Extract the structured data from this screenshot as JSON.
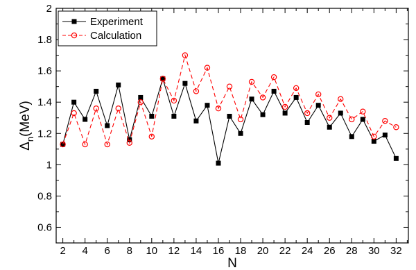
{
  "chart_data": {
    "type": "line",
    "title": "",
    "xlabel": "N",
    "ylabel_main": "Δ",
    "ylabel_sub": "n",
    "ylabel_unit": "(MeV)",
    "xlim": [
      1.4,
      33.1
    ],
    "ylim": [
      0.5,
      2.0
    ],
    "xticks_major": [
      2,
      4,
      6,
      8,
      10,
      12,
      14,
      16,
      18,
      20,
      22,
      24,
      26,
      28,
      30,
      32
    ],
    "xtick_labels": [
      "2",
      "4",
      "6",
      "8",
      "10",
      "12",
      "14",
      "16",
      "18",
      "20",
      "22",
      "24",
      "26",
      "28",
      "30",
      "32"
    ],
    "yticks_major": [
      0.6,
      0.8,
      1.0,
      1.2,
      1.4,
      1.6,
      1.8,
      2.0
    ],
    "ytick_labels": [
      "0.6",
      "0.8",
      "1",
      "1.2",
      "1.4",
      "1.6",
      "1.8",
      "2"
    ],
    "grid": false,
    "legend_position": "top-left",
    "x": [
      2,
      3,
      4,
      5,
      6,
      7,
      8,
      9,
      10,
      11,
      12,
      13,
      14,
      15,
      16,
      17,
      18,
      19,
      20,
      21,
      22,
      23,
      24,
      25,
      26,
      27,
      28,
      29,
      30,
      31,
      32
    ],
    "series": [
      {
        "name": "Experiment",
        "color": "#000000",
        "marker": "filled-square",
        "line": "solid",
        "values": [
          1.13,
          1.4,
          1.29,
          1.47,
          1.25,
          1.51,
          1.16,
          1.43,
          1.31,
          1.55,
          1.31,
          1.52,
          1.28,
          1.38,
          1.01,
          1.31,
          1.2,
          1.42,
          1.32,
          1.47,
          1.33,
          1.43,
          1.27,
          1.38,
          1.24,
          1.33,
          1.18,
          1.29,
          1.15,
          1.19,
          1.04
        ]
      },
      {
        "name": "Calculation",
        "color": "#ff0000",
        "marker": "open-circle",
        "line": "dashed",
        "values": [
          1.13,
          1.33,
          1.13,
          1.36,
          1.13,
          1.36,
          1.14,
          1.4,
          1.18,
          1.55,
          1.41,
          1.7,
          1.47,
          1.62,
          1.36,
          1.5,
          1.29,
          1.53,
          1.43,
          1.56,
          1.37,
          1.49,
          1.33,
          1.45,
          1.3,
          1.42,
          1.29,
          1.34,
          1.18,
          1.28,
          1.24
        ]
      }
    ]
  }
}
